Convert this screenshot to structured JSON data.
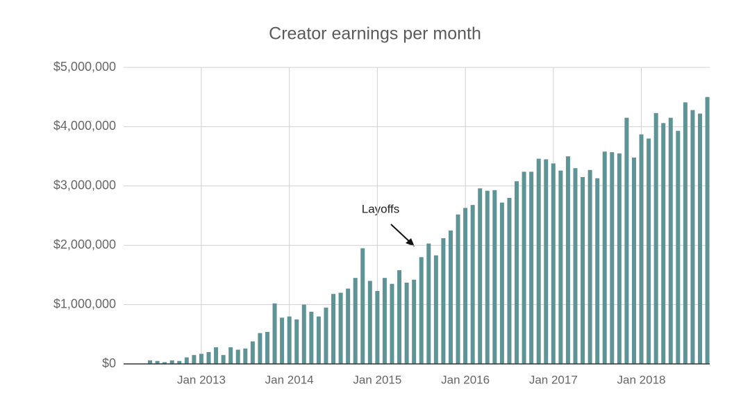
{
  "chart_data": {
    "type": "bar",
    "title": "Creator earnings per month",
    "categories": [
      null,
      null,
      null,
      null,
      null,
      null,
      null,
      "Jan 2013",
      null,
      null,
      null,
      null,
      null,
      null,
      null,
      null,
      null,
      null,
      null,
      "Jan 2014",
      null,
      null,
      null,
      null,
      null,
      null,
      null,
      null,
      null,
      null,
      null,
      "Jan 2015",
      null,
      null,
      null,
      null,
      null,
      null,
      null,
      null,
      null,
      null,
      null,
      "Jan 2016",
      null,
      null,
      null,
      null,
      null,
      null,
      null,
      null,
      null,
      null,
      null,
      "Jan 2017",
      null,
      null,
      null,
      null,
      null,
      null,
      null,
      null,
      null,
      null,
      null,
      "Jan 2018",
      null,
      null,
      null,
      null,
      null,
      null,
      null,
      null,
      null
    ],
    "values": [
      60000,
      50000,
      30000,
      60000,
      50000,
      110000,
      150000,
      170000,
      200000,
      280000,
      150000,
      280000,
      240000,
      260000,
      380000,
      520000,
      540000,
      1020000,
      780000,
      800000,
      750000,
      1000000,
      880000,
      800000,
      950000,
      1180000,
      1200000,
      1270000,
      1450000,
      1950000,
      1400000,
      1230000,
      1450000,
      1350000,
      1580000,
      1370000,
      1420000,
      1800000,
      2030000,
      1830000,
      2120000,
      2250000,
      2520000,
      2630000,
      2680000,
      2960000,
      2920000,
      2930000,
      2720000,
      2800000,
      3080000,
      3240000,
      3240000,
      3460000,
      3450000,
      3380000,
      3260000,
      3500000,
      3300000,
      3150000,
      3270000,
      3130000,
      3580000,
      3570000,
      3550000,
      4150000,
      3480000,
      3870000,
      3800000,
      4230000,
      4060000,
      4150000,
      3930000,
      4410000,
      4280000,
      4220000,
      4500000
    ],
    "color": "#5f9496",
    "ylim": [
      0,
      5000000
    ],
    "yticks": [
      {
        "value": 0,
        "label": "$0"
      },
      {
        "value": 1000000,
        "label": "$1,000,000"
      },
      {
        "value": 2000000,
        "label": "$2,000,000"
      },
      {
        "value": 3000000,
        "label": "$3,000,000"
      },
      {
        "value": 4000000,
        "label": "$4,000,000"
      },
      {
        "value": 5000000,
        "label": "$5,000,000"
      }
    ],
    "grid": true,
    "annotations": [
      {
        "text": "Layoffs"
      }
    ]
  }
}
